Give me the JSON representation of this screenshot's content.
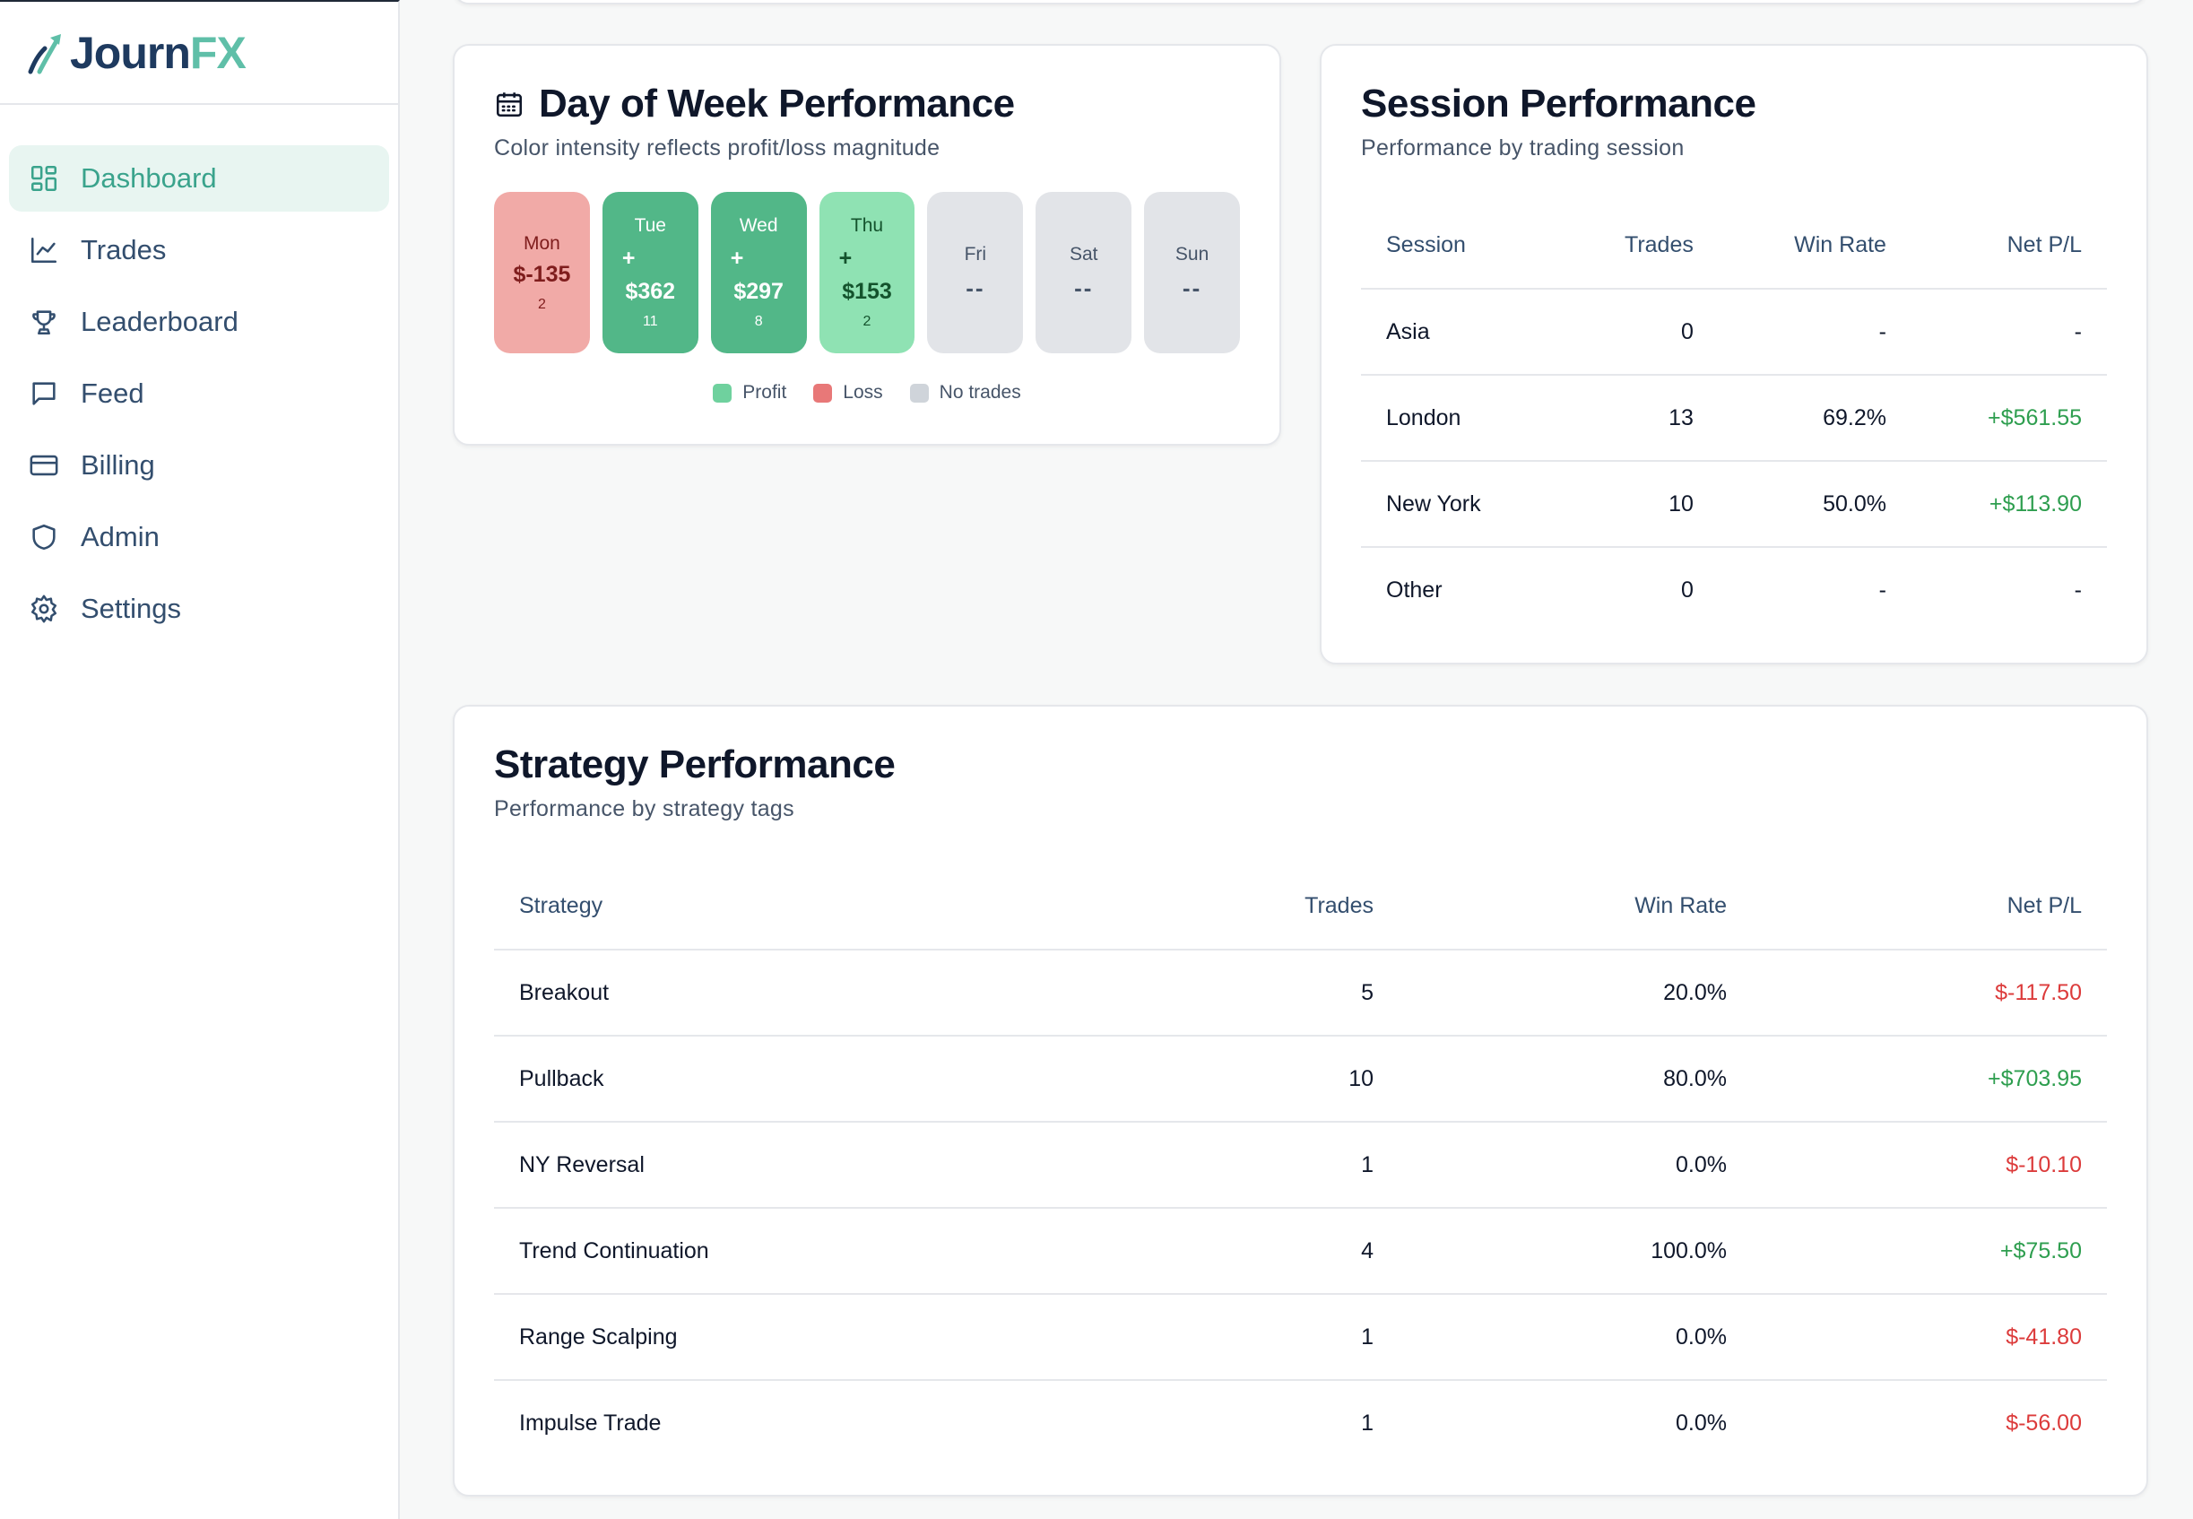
{
  "brand": {
    "part1": "Journ",
    "part2": "FX"
  },
  "nav": [
    {
      "label": "Dashboard",
      "icon": "dashboard-grid-icon",
      "active": true
    },
    {
      "label": "Trades",
      "icon": "line-chart-icon"
    },
    {
      "label": "Leaderboard",
      "icon": "trophy-icon"
    },
    {
      "label": "Feed",
      "icon": "message-square-icon"
    },
    {
      "label": "Billing",
      "icon": "credit-card-icon"
    },
    {
      "label": "Admin",
      "icon": "shield-icon"
    },
    {
      "label": "Settings",
      "icon": "gear-icon"
    }
  ],
  "day_of_week": {
    "title": "Day of Week Performance",
    "subtitle": "Color intensity reflects profit/loss magnitude",
    "days": [
      {
        "name": "Mon",
        "plus": "",
        "value": "$-135",
        "count": "2"
      },
      {
        "name": "Tue",
        "plus": "+",
        "value": "$362",
        "count": "11"
      },
      {
        "name": "Wed",
        "plus": "+",
        "value": "$297",
        "count": "8"
      },
      {
        "name": "Thu",
        "plus": "+",
        "value": "$153",
        "count": "2"
      },
      {
        "name": "Fri",
        "value": "--"
      },
      {
        "name": "Sat",
        "value": "--"
      },
      {
        "name": "Sun",
        "value": "--"
      }
    ],
    "legend": {
      "profit": "Profit",
      "loss": "Loss",
      "none": "No trades"
    },
    "colors": {
      "loss": "#f1aaa7",
      "profit_strong": "#52b788",
      "profit_light": "#8fe2b3",
      "none": "#e2e4e8"
    }
  },
  "session": {
    "title": "Session Performance",
    "subtitle": "Performance by trading session",
    "headers": {
      "name": "Session",
      "trades": "Trades",
      "win_rate": "Win Rate",
      "net": "Net P/L"
    },
    "rows": [
      {
        "name": "Asia",
        "trades": "0",
        "win_rate": "-",
        "net": "-"
      },
      {
        "name": "London",
        "trades": "13",
        "win_rate": "69.2%",
        "net": "+$561.55"
      },
      {
        "name": "New York",
        "trades": "10",
        "win_rate": "50.0%",
        "net": "+$113.90"
      },
      {
        "name": "Other",
        "trades": "0",
        "win_rate": "-",
        "net": "-"
      }
    ]
  },
  "strategy": {
    "title": "Strategy Performance",
    "subtitle": "Performance by strategy tags",
    "headers": {
      "name": "Strategy",
      "trades": "Trades",
      "win_rate": "Win Rate",
      "net": "Net P/L"
    },
    "rows": [
      {
        "name": "Breakout",
        "trades": "5",
        "win_rate": "20.0%",
        "net": "$-117.50"
      },
      {
        "name": "Pullback",
        "trades": "10",
        "win_rate": "80.0%",
        "net": "+$703.95"
      },
      {
        "name": "NY Reversal",
        "trades": "1",
        "win_rate": "0.0%",
        "net": "$-10.10"
      },
      {
        "name": "Trend Continuation",
        "trades": "4",
        "win_rate": "100.0%",
        "net": "+$75.50"
      },
      {
        "name": "Range Scalping",
        "trades": "1",
        "win_rate": "0.0%",
        "net": "$-41.80"
      },
      {
        "name": "Impulse Trade",
        "trades": "1",
        "win_rate": "0.0%",
        "net": "$-56.00"
      }
    ]
  }
}
